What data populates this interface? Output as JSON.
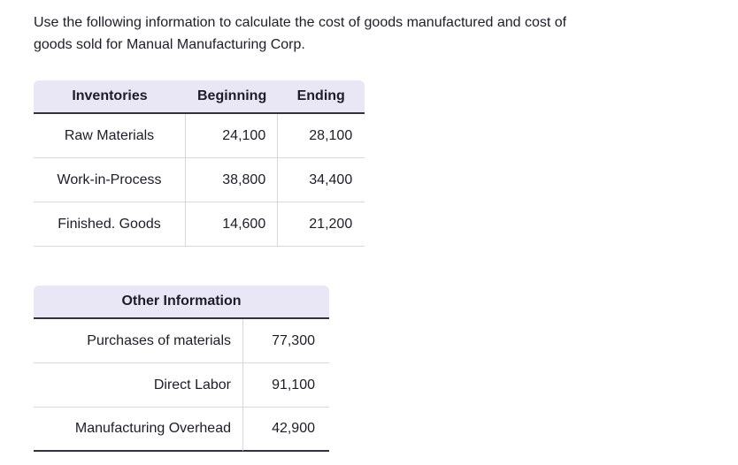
{
  "intro": {
    "line1": "Use the following information to calculate the cost of goods manufactured and cost of",
    "line2": "goods sold for Manual Manufacturing Corp."
  },
  "inventories_table": {
    "headers": [
      "Inventories",
      "Beginning",
      "Ending"
    ],
    "rows": [
      {
        "label": "Raw Materials",
        "beginning": "24,100",
        "ending": "28,100"
      },
      {
        "label": "Work-in-Process",
        "beginning": "38,800",
        "ending": "34,400"
      },
      {
        "label": "Finished. Goods",
        "beginning": "14,600",
        "ending": "21,200"
      }
    ]
  },
  "other_information_table": {
    "header": "Other Information",
    "rows": [
      {
        "label": "Purchases of materials",
        "value": "77,300"
      },
      {
        "label": "Direct Labor",
        "value": "91,100"
      },
      {
        "label": "Manufacturing Overhead",
        "value": "42,900"
      }
    ]
  },
  "colors": {
    "table_header_bg": "#e9e6f6",
    "dark_border": "#32323e",
    "light_border": "#d9d7e2",
    "text": "#1d1d29"
  }
}
